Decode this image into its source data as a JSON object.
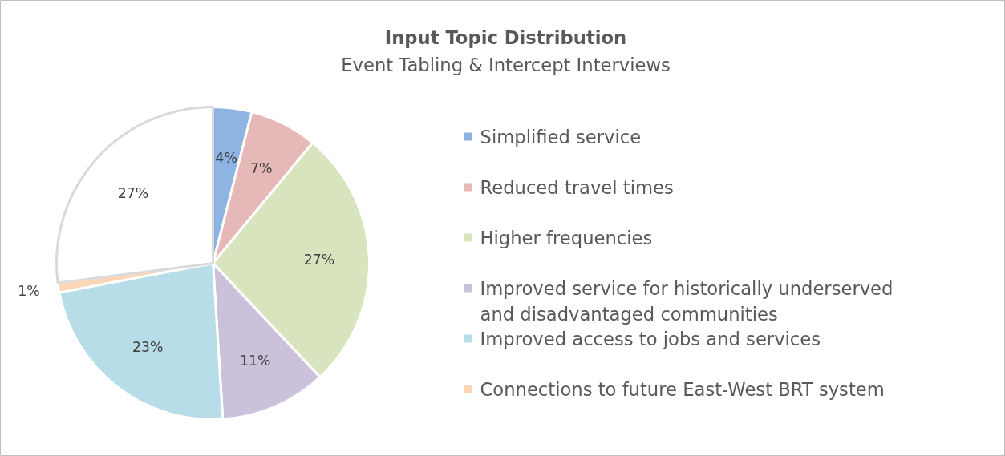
{
  "chart_data": {
    "type": "pie",
    "title": "Input Topic Distribution",
    "subtitle": "Event Tabling & Intercept Interviews",
    "categories": [
      "Simplified service",
      "Reduced travel times",
      "Higher frequencies",
      "Improved service for historically underserved and disadvantaged communities",
      "Improved access to jobs and services",
      "Connections to future East-West BRT system",
      null
    ],
    "values": [
      4,
      7,
      27,
      11,
      23,
      1,
      27
    ],
    "value_labels": [
      "4%",
      "7%",
      "27%",
      "11%",
      "23%",
      "1%",
      "27%"
    ],
    "colors": [
      "#8eb4e3",
      "#e6b9b8",
      "#d7e4bd",
      "#ccc1da",
      "#b7dee8",
      "#fcd5b5",
      "#ffffff"
    ],
    "legend": "right"
  }
}
